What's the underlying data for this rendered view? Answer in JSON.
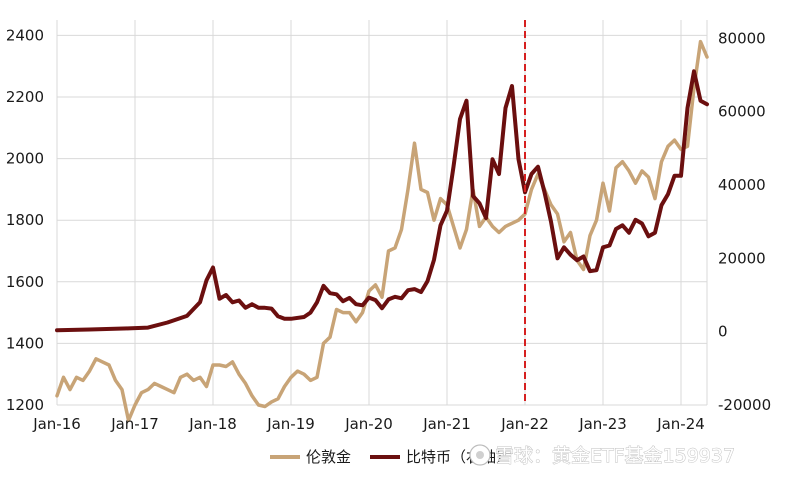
{
  "chart_data": {
    "type": "line",
    "x_tick_labels": [
      "Jan-16",
      "Jan-17",
      "Jan-18",
      "Jan-19",
      "Jan-20",
      "Jan-21",
      "Jan-22",
      "Jan-23",
      "Jan-24"
    ],
    "y_left": {
      "ticks": [
        "1200",
        "1400",
        "1600",
        "1800",
        "2000",
        "2200",
        "2400"
      ],
      "range": [
        1200,
        2450
      ]
    },
    "y_right": {
      "ticks": [
        "-20000",
        "0",
        "20000",
        "40000",
        "60000",
        "80000"
      ],
      "range": [
        -20000,
        85000
      ]
    },
    "x_range": [
      "2016-01",
      "2024-05"
    ],
    "grid": {
      "vertical": true,
      "horizontal": true
    },
    "reference_line": {
      "x": "2022-01",
      "color": "#d62020",
      "style": "dashed"
    },
    "legend_position": "bottom",
    "series": [
      {
        "name": "伦敦金",
        "axis": "left",
        "color": "#c8a477",
        "points": [
          [
            "2016-01",
            1230
          ],
          [
            "2016-02",
            1290
          ],
          [
            "2016-03",
            1250
          ],
          [
            "2016-04",
            1290
          ],
          [
            "2016-05",
            1280
          ],
          [
            "2016-06",
            1310
          ],
          [
            "2016-07",
            1350
          ],
          [
            "2016-08",
            1340
          ],
          [
            "2016-09",
            1330
          ],
          [
            "2016-10",
            1280
          ],
          [
            "2016-11",
            1250
          ],
          [
            "2016-12",
            1150
          ],
          [
            "2017-01",
            1200
          ],
          [
            "2017-02",
            1240
          ],
          [
            "2017-03",
            1250
          ],
          [
            "2017-04",
            1270
          ],
          [
            "2017-05",
            1260
          ],
          [
            "2017-06",
            1250
          ],
          [
            "2017-07",
            1240
          ],
          [
            "2017-08",
            1290
          ],
          [
            "2017-09",
            1300
          ],
          [
            "2017-10",
            1280
          ],
          [
            "2017-11",
            1290
          ],
          [
            "2017-12",
            1260
          ],
          [
            "2018-01",
            1330
          ],
          [
            "2018-02",
            1330
          ],
          [
            "2018-03",
            1325
          ],
          [
            "2018-04",
            1340
          ],
          [
            "2018-05",
            1300
          ],
          [
            "2018-06",
            1270
          ],
          [
            "2018-07",
            1230
          ],
          [
            "2018-08",
            1200
          ],
          [
            "2018-09",
            1195
          ],
          [
            "2018-10",
            1210
          ],
          [
            "2018-11",
            1220
          ],
          [
            "2018-12",
            1260
          ],
          [
            "2019-01",
            1290
          ],
          [
            "2019-02",
            1310
          ],
          [
            "2019-03",
            1300
          ],
          [
            "2019-04",
            1280
          ],
          [
            "2019-05",
            1290
          ],
          [
            "2019-06",
            1400
          ],
          [
            "2019-07",
            1420
          ],
          [
            "2019-08",
            1510
          ],
          [
            "2019-09",
            1500
          ],
          [
            "2019-10",
            1500
          ],
          [
            "2019-11",
            1470
          ],
          [
            "2019-12",
            1500
          ],
          [
            "2020-01",
            1570
          ],
          [
            "2020-02",
            1590
          ],
          [
            "2020-03",
            1550
          ],
          [
            "2020-04",
            1700
          ],
          [
            "2020-05",
            1710
          ],
          [
            "2020-06",
            1770
          ],
          [
            "2020-07",
            1900
          ],
          [
            "2020-08",
            2050
          ],
          [
            "2020-09",
            1900
          ],
          [
            "2020-10",
            1890
          ],
          [
            "2020-11",
            1800
          ],
          [
            "2020-12",
            1870
          ],
          [
            "2021-01",
            1850
          ],
          [
            "2021-02",
            1780
          ],
          [
            "2021-03",
            1710
          ],
          [
            "2021-04",
            1770
          ],
          [
            "2021-05",
            1900
          ],
          [
            "2021-06",
            1780
          ],
          [
            "2021-07",
            1810
          ],
          [
            "2021-08",
            1780
          ],
          [
            "2021-09",
            1760
          ],
          [
            "2021-10",
            1780
          ],
          [
            "2021-11",
            1790
          ],
          [
            "2021-12",
            1800
          ],
          [
            "2022-01",
            1820
          ],
          [
            "2022-02",
            1900
          ],
          [
            "2022-03",
            1950
          ],
          [
            "2022-04",
            1900
          ],
          [
            "2022-05",
            1850
          ],
          [
            "2022-06",
            1820
          ],
          [
            "2022-07",
            1730
          ],
          [
            "2022-08",
            1760
          ],
          [
            "2022-09",
            1670
          ],
          [
            "2022-10",
            1640
          ],
          [
            "2022-11",
            1750
          ],
          [
            "2022-12",
            1800
          ],
          [
            "2023-01",
            1920
          ],
          [
            "2023-02",
            1830
          ],
          [
            "2023-03",
            1970
          ],
          [
            "2023-04",
            1990
          ],
          [
            "2023-05",
            1960
          ],
          [
            "2023-06",
            1920
          ],
          [
            "2023-07",
            1960
          ],
          [
            "2023-08",
            1940
          ],
          [
            "2023-09",
            1870
          ],
          [
            "2023-10",
            1990
          ],
          [
            "2023-11",
            2040
          ],
          [
            "2023-12",
            2060
          ],
          [
            "2024-01",
            2030
          ],
          [
            "2024-02",
            2040
          ],
          [
            "2024-03",
            2230
          ],
          [
            "2024-04",
            2380
          ],
          [
            "2024-05",
            2330
          ]
        ]
      },
      {
        "name": "比特币（右轴）",
        "axis": "right",
        "color": "#6b0f0f",
        "points": [
          [
            "2016-01",
            400
          ],
          [
            "2016-06",
            600
          ],
          [
            "2016-12",
            900
          ],
          [
            "2017-03",
            1100
          ],
          [
            "2017-06",
            2500
          ],
          [
            "2017-09",
            4300
          ],
          [
            "2017-11",
            8000
          ],
          [
            "2017-12",
            14000
          ],
          [
            "2018-01",
            17500
          ],
          [
            "2018-02",
            9000
          ],
          [
            "2018-03",
            10000
          ],
          [
            "2018-04",
            8000
          ],
          [
            "2018-05",
            8500
          ],
          [
            "2018-06",
            6500
          ],
          [
            "2018-07",
            7500
          ],
          [
            "2018-08",
            6500
          ],
          [
            "2018-09",
            6500
          ],
          [
            "2018-10",
            6300
          ],
          [
            "2018-11",
            4200
          ],
          [
            "2018-12",
            3500
          ],
          [
            "2019-01",
            3500
          ],
          [
            "2019-03",
            4000
          ],
          [
            "2019-04",
            5200
          ],
          [
            "2019-05",
            8000
          ],
          [
            "2019-06",
            12500
          ],
          [
            "2019-07",
            10500
          ],
          [
            "2019-08",
            10200
          ],
          [
            "2019-09",
            8300
          ],
          [
            "2019-10",
            9200
          ],
          [
            "2019-11",
            7500
          ],
          [
            "2019-12",
            7200
          ],
          [
            "2020-01",
            9300
          ],
          [
            "2020-02",
            8600
          ],
          [
            "2020-03",
            6400
          ],
          [
            "2020-04",
            8800
          ],
          [
            "2020-05",
            9500
          ],
          [
            "2020-06",
            9100
          ],
          [
            "2020-07",
            11300
          ],
          [
            "2020-08",
            11600
          ],
          [
            "2020-09",
            10800
          ],
          [
            "2020-10",
            13800
          ],
          [
            "2020-11",
            19600
          ],
          [
            "2020-12",
            29000
          ],
          [
            "2021-01",
            33000
          ],
          [
            "2021-02",
            45000
          ],
          [
            "2021-03",
            58000
          ],
          [
            "2021-04",
            63000
          ],
          [
            "2021-05",
            37000
          ],
          [
            "2021-06",
            35000
          ],
          [
            "2021-07",
            31000
          ],
          [
            "2021-08",
            47000
          ],
          [
            "2021-09",
            43000
          ],
          [
            "2021-10",
            61000
          ],
          [
            "2021-11",
            67000
          ],
          [
            "2021-12",
            47000
          ],
          [
            "2022-01",
            38000
          ],
          [
            "2022-02",
            43000
          ],
          [
            "2022-03",
            45000
          ],
          [
            "2022-04",
            38000
          ],
          [
            "2022-05",
            30000
          ],
          [
            "2022-06",
            20000
          ],
          [
            "2022-07",
            23000
          ],
          [
            "2022-08",
            21000
          ],
          [
            "2022-09",
            19500
          ],
          [
            "2022-10",
            20500
          ],
          [
            "2022-11",
            16500
          ],
          [
            "2022-12",
            16800
          ],
          [
            "2023-01",
            23000
          ],
          [
            "2023-02",
            23500
          ],
          [
            "2023-03",
            28000
          ],
          [
            "2023-04",
            29000
          ],
          [
            "2023-05",
            27000
          ],
          [
            "2023-06",
            30500
          ],
          [
            "2023-07",
            29500
          ],
          [
            "2023-08",
            26000
          ],
          [
            "2023-09",
            27000
          ],
          [
            "2023-10",
            34500
          ],
          [
            "2023-11",
            37500
          ],
          [
            "2023-12",
            42500
          ],
          [
            "2024-01",
            42500
          ],
          [
            "2024-02",
            61000
          ],
          [
            "2024-03",
            71000
          ],
          [
            "2024-04",
            63000
          ],
          [
            "2024-05",
            62000
          ]
        ]
      }
    ]
  },
  "watermark": "雪球：黄金ETF基金159937"
}
